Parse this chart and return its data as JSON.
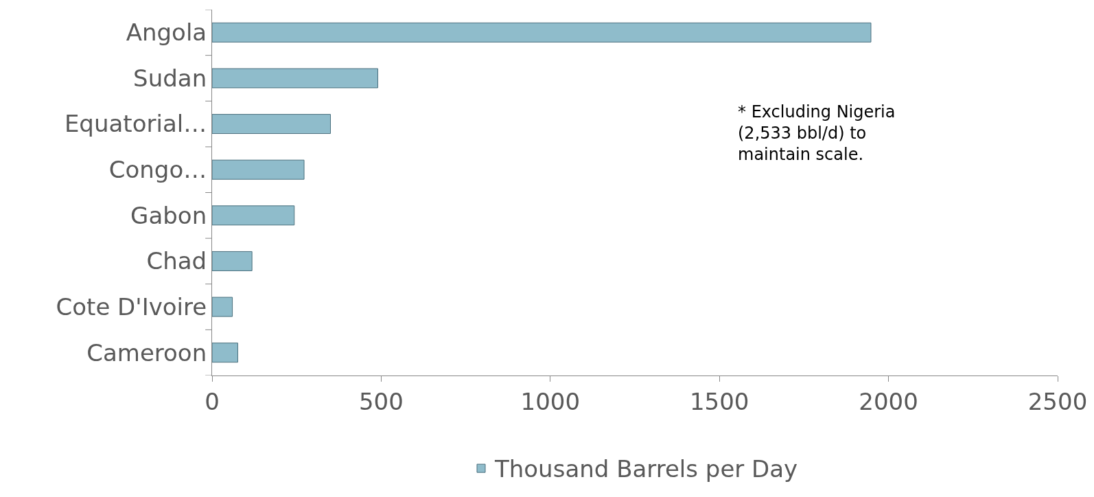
{
  "chart_data": {
    "type": "bar",
    "orientation": "horizontal",
    "categories": [
      "Angola",
      "Sudan",
      "Equatorial…",
      "Congo…",
      "Gabon",
      "Chad",
      "Cote D'Ivoire",
      "Cameroon"
    ],
    "series": [
      {
        "name": "Thousand Barrels per Day",
        "color": "#8fbccb",
        "values": [
          1948,
          490,
          350,
          272,
          243,
          118,
          60,
          76
        ]
      }
    ],
    "xlim": [
      0,
      2500
    ],
    "xticks": [
      0,
      500,
      1000,
      1500,
      2000,
      2500
    ],
    "grid": false,
    "legend": "bottom",
    "annotations": [
      "* Excluding Nigeria\n(2,533 bbl/d) to\nmaintain scale."
    ]
  }
}
